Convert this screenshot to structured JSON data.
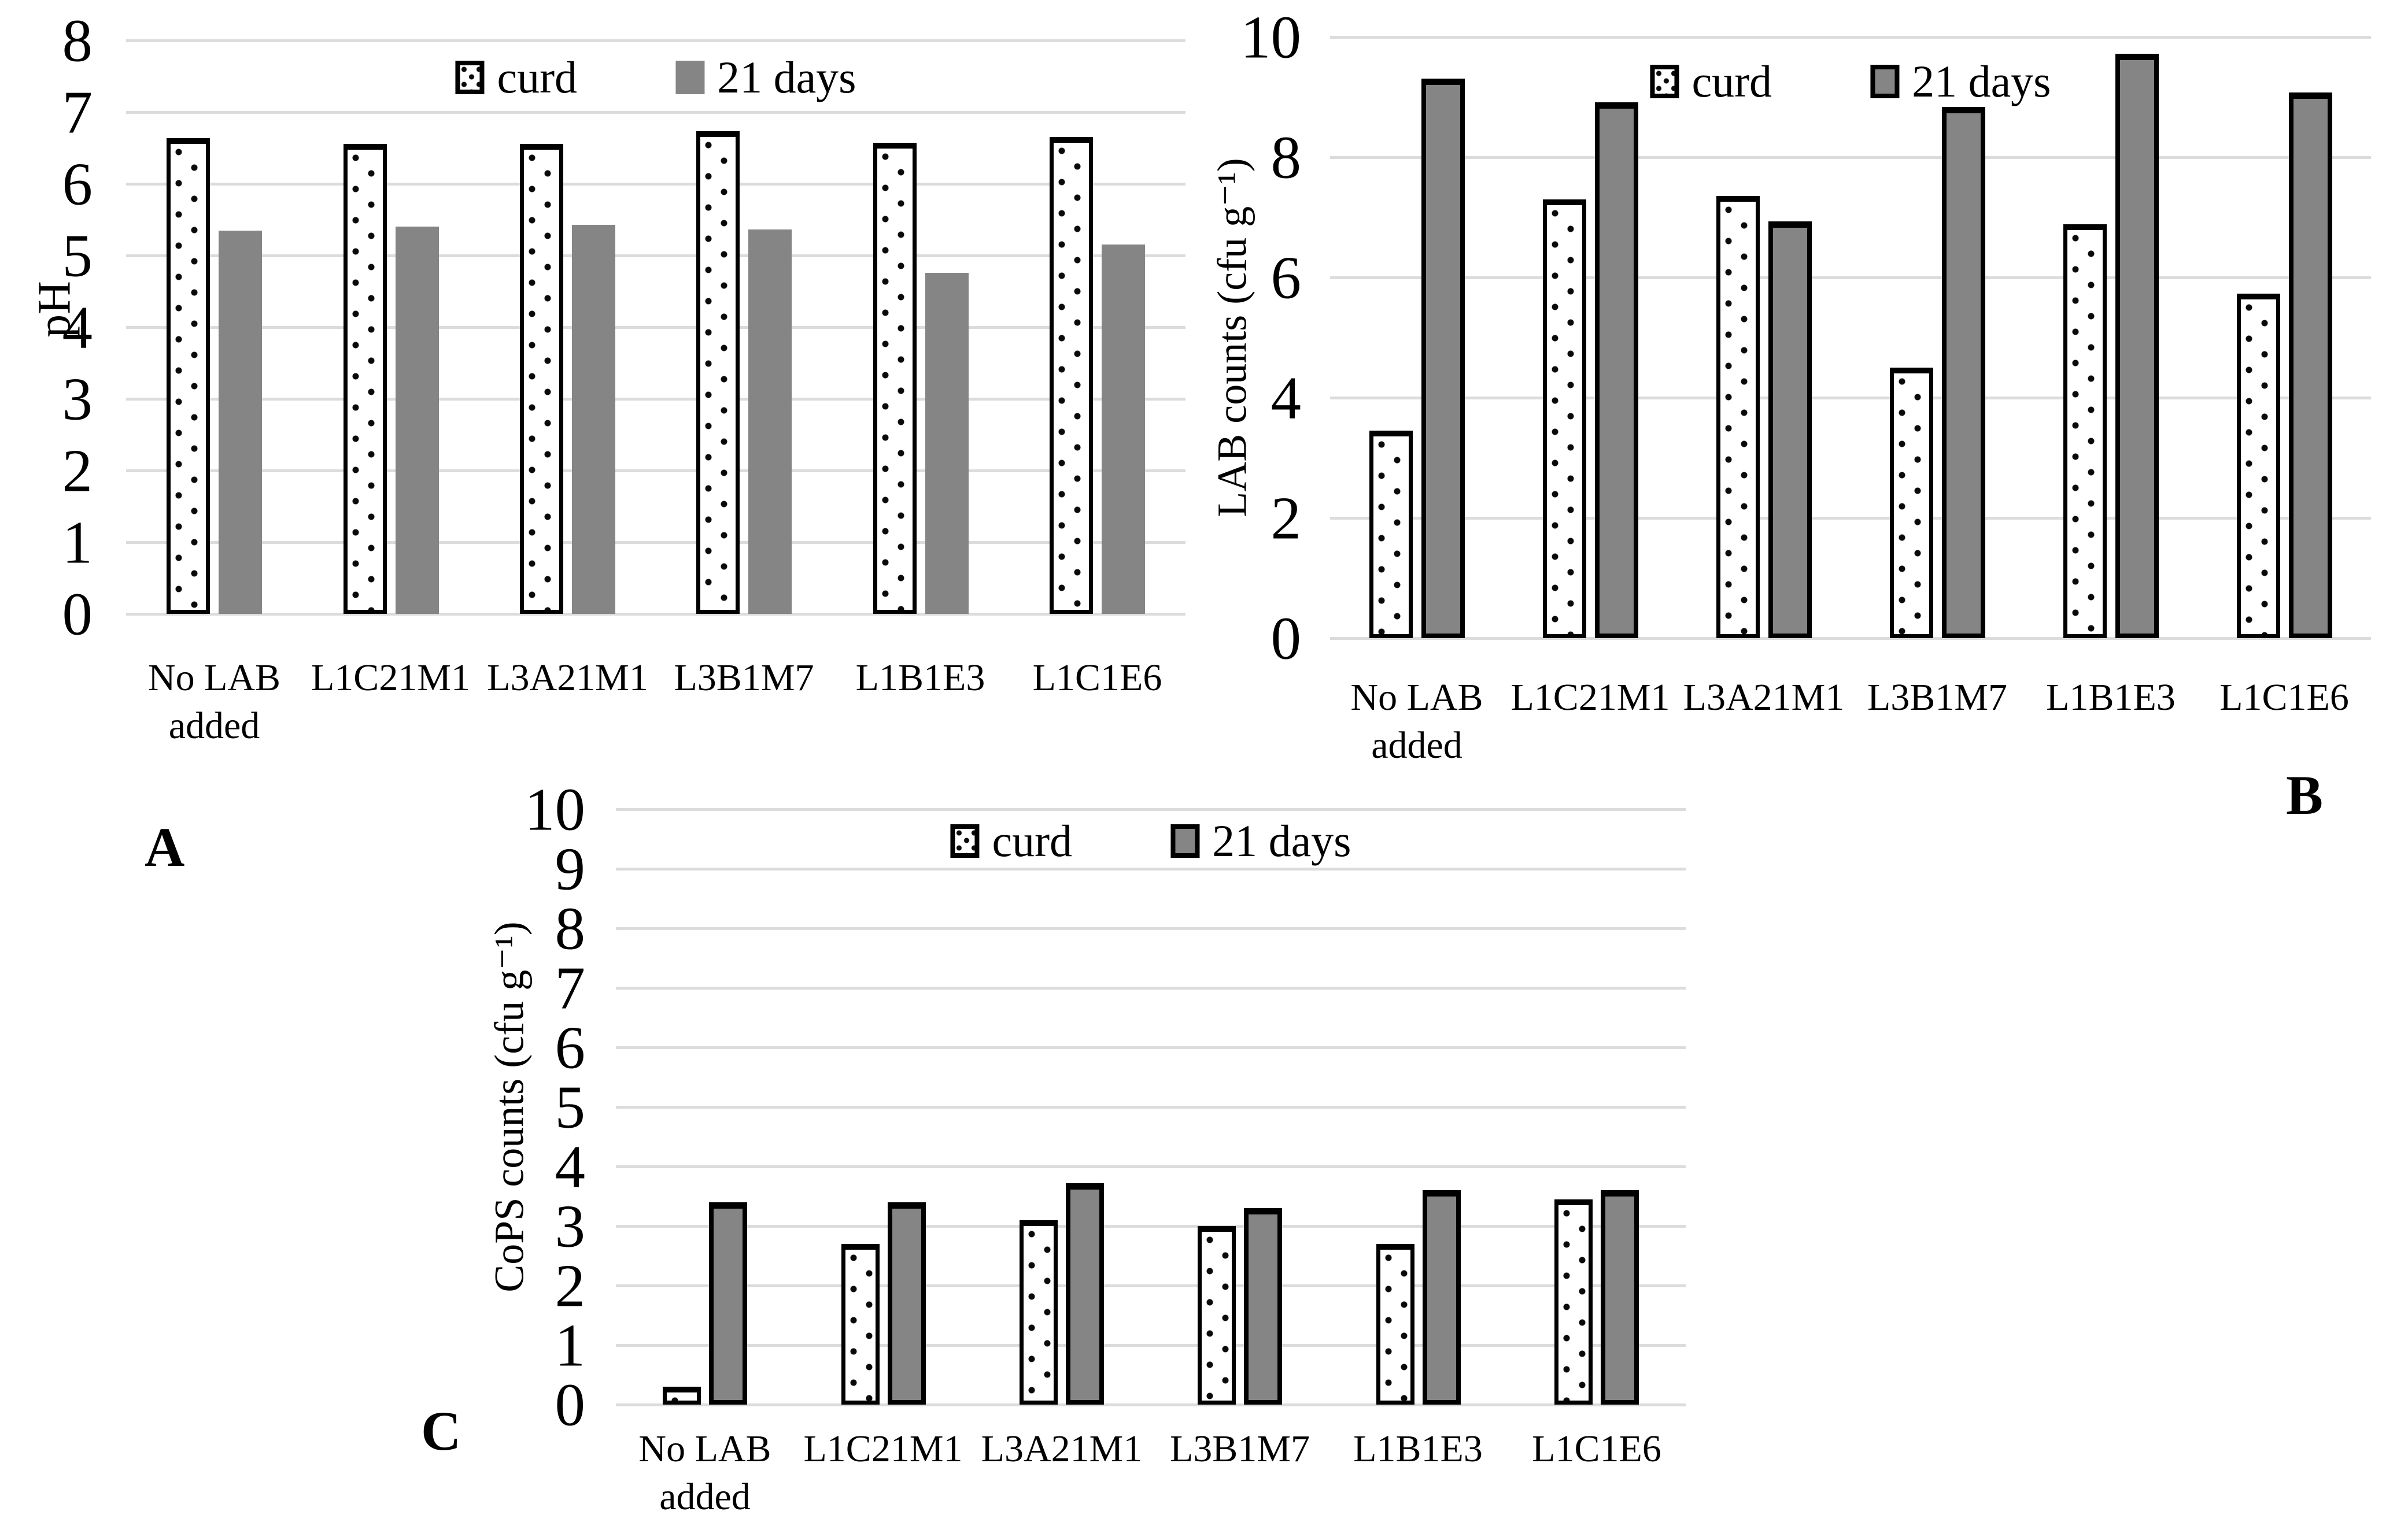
{
  "figure": {
    "background": "#ffffff",
    "colors": {
      "bar_gray": "#858585",
      "bar_border": "#000000",
      "curd_fill": "#ffffff",
      "curd_dot": "#0a0a0a",
      "gridline": "#dcdcdc",
      "text": "#000000"
    },
    "icons": {
      "curd": "dotted-square-swatch",
      "21_days": "gray-square-swatch"
    }
  },
  "chart_data": [
    {
      "id": "A",
      "type": "bar",
      "panel_label": "A",
      "title": "",
      "xlabel": "",
      "ylabel": "pH",
      "ylim": [
        0,
        8
      ],
      "ytick_step": 1,
      "grid": true,
      "legend_position": "top-center",
      "categories": [
        "No LAB\nadded",
        "L1C21M1",
        "L3A21M1",
        "L3B1M7",
        "L1B1E3",
        "L1C1E6"
      ],
      "series": [
        {
          "name": "curd",
          "style": "dotted-white",
          "border": true,
          "values": [
            6.64,
            6.56,
            6.56,
            6.73,
            6.57,
            6.65
          ]
        },
        {
          "name": "21 days",
          "style": "solid-gray",
          "border": false,
          "values": [
            5.35,
            5.4,
            5.43,
            5.36,
            4.76,
            5.15
          ]
        }
      ]
    },
    {
      "id": "B",
      "type": "bar",
      "panel_label": "B",
      "title": "",
      "xlabel": "",
      "ylabel": "LAB counts (cfu g⁻¹)",
      "ylim": [
        0,
        10
      ],
      "ytick_step": 2,
      "grid": true,
      "legend_position": "top-center",
      "categories": [
        "No LAB\nadded",
        "L1C21M1",
        "L3A21M1",
        "L3B1M7",
        "L1B1E3",
        "L1C1E6"
      ],
      "series": [
        {
          "name": "curd",
          "style": "dotted-white",
          "border": true,
          "values": [
            3.45,
            7.3,
            7.36,
            4.5,
            6.88,
            5.73
          ]
        },
        {
          "name": "21 days",
          "style": "solid-gray",
          "border": true,
          "values": [
            9.31,
            8.91,
            6.93,
            8.84,
            9.72,
            9.08
          ]
        }
      ]
    },
    {
      "id": "C",
      "type": "bar",
      "panel_label": "C",
      "title": "",
      "xlabel": "",
      "ylabel": "CoPS counts (cfu g⁻¹)",
      "ylim": [
        0,
        10
      ],
      "ytick_step": 1,
      "grid": true,
      "legend_position": "top-center",
      "categories": [
        "No LAB\nadded",
        "L1C21M1",
        "L3A21M1",
        "L3B1M7",
        "L1B1E3",
        "L1C1E6"
      ],
      "series": [
        {
          "name": "curd",
          "style": "dotted-white",
          "border": true,
          "values": [
            0.3,
            2.7,
            3.1,
            3.0,
            2.7,
            3.45
          ]
        },
        {
          "name": "21 days",
          "style": "solid-gray",
          "border": true,
          "values": [
            3.4,
            3.4,
            3.72,
            3.3,
            3.6,
            3.6
          ]
        }
      ]
    }
  ]
}
